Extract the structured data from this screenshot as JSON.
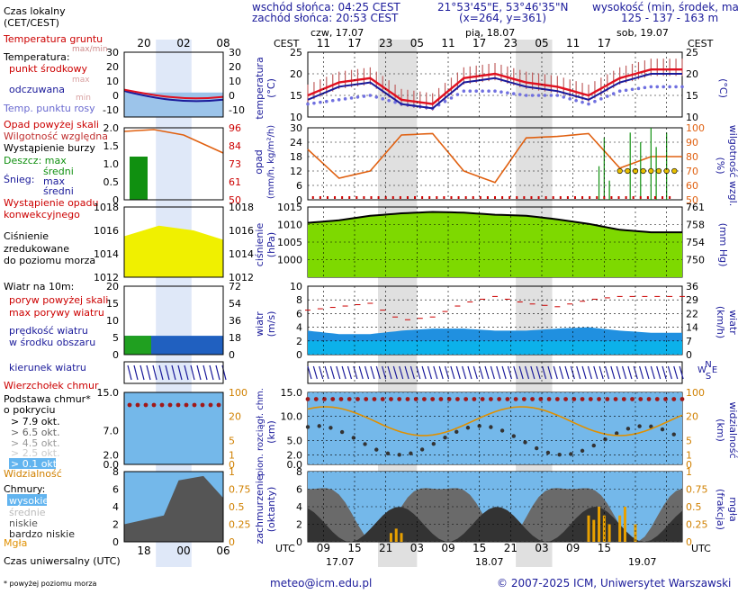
{
  "header": {
    "sunrise": "wschód słońca: 04:25 CEST",
    "sunset": "zachód słońca: 20:53 CEST",
    "coords": "21°53'45\"E, 53°46'35\"N",
    "grid": "(x=264, y=361)",
    "height_title": "wysokość (min, środek, max)",
    "height_values": "125 - 137 - 163 m"
  },
  "legend": {
    "local_time": "Czas lokalny",
    "local_time_sub": "(CET/CEST)",
    "soil_temp": "Temperatura gruntu",
    "soil_temp_sub": "max/min",
    "temperature": "Temperatura:",
    "temp_mid": "punkt środkowy",
    "temp_max": "max",
    "temp_felt": "odczuwana",
    "temp_min": "min",
    "dew_point": "Temp. punktu rosy",
    "precip_above": "Opad powyżej skali",
    "humidity": "Wilgotność względna",
    "storm": "Wystąpienie burzy",
    "rain": "Deszcz: max",
    "rain_mean": "średni",
    "snow": "Śnieg:",
    "snow_max": "max",
    "snow_mean": "średni",
    "convective": "Wystąpienie opadu",
    "convective2": "konwekcyjnego",
    "pressure1": "Ciśnienie",
    "pressure2": "zredukowane",
    "pressure3": "do poziomu morza",
    "wind": "Wiatr na 10m:",
    "gust_above": "poryw powyżej skali",
    "gust_max": "max porywy wiatru",
    "wind_mean1": "prędkość wiatru",
    "wind_mean2": "w środku obszaru",
    "wind_dir": "kierunek wiatru",
    "cloud_top": "Wierzchołek chmur",
    "cloud_base1": "Podstawa chmur*",
    "cloud_base2": "o pokryciu",
    "okt79": "> 7.9 okt.",
    "okt65": "> 6.5 okt.",
    "okt45": "> 4.5 okt.",
    "okt25": "> 2.5 okt.",
    "okt01": "> 0.1 okt.",
    "visibility": "Widzialność",
    "clouds": "Chmury:",
    "c_high": "wysokie",
    "c_mid": "średnie",
    "c_low": "niskie",
    "c_vlow": "bardzo niskie",
    "fog": "Mgła",
    "utc_time": "Czas uniwersalny (UTC)",
    "footnote": "* powyżej poziomu morza"
  },
  "axes": {
    "cest": "CEST",
    "utc": "UTC",
    "top_hours": [
      "11",
      "17",
      "23",
      "05",
      "11",
      "17",
      "23",
      "05",
      "11",
      "17"
    ],
    "bottom_hours": [
      "09",
      "15",
      "21",
      "03",
      "09",
      "15",
      "21",
      "03",
      "09",
      "15"
    ],
    "day_top": [
      "czw, 17.07",
      "pią, 18.07",
      "sob, 19.07"
    ],
    "day_bottom": [
      "17.07",
      "18.07",
      "19.07"
    ],
    "small_top": [
      "20",
      "02",
      "08"
    ],
    "small_bottom": [
      "18",
      "00",
      "06"
    ],
    "temp_label": "temperatura",
    "temp_unit": "(°C)",
    "temp_ticks": [
      "25",
      "20",
      "15",
      "10"
    ],
    "small_temp_ticks": [
      "30",
      "20",
      "10",
      "0",
      "-10"
    ],
    "precip_label": "opad",
    "precip_unit": "(mm/h, kg/m²/h)",
    "precip_ticks": [
      "30",
      "24",
      "18",
      "12",
      "6",
      "0"
    ],
    "hum_label": "wilgotność wzgl.",
    "hum_unit": "(%)",
    "hum_ticks": [
      "100",
      "90",
      "80",
      "70",
      "60",
      "50"
    ],
    "small_precip_ticks": [
      "2.0",
      "1.5",
      "1.0",
      "0.5",
      "0"
    ],
    "small_hum_ticks": [
      "96",
      "84",
      "73",
      "61",
      "50"
    ],
    "press_label": "ciśnienie",
    "press_unit": "(hPa)",
    "press_ticks": [
      "1015",
      "1010",
      "1005",
      "1000"
    ],
    "press_mmhg_label": "(mm Hg)",
    "press_mmhg_ticks": [
      "761",
      "758",
      "754",
      "750"
    ],
    "small_press_ticks": [
      "1018",
      "1016",
      "1014",
      "1012"
    ],
    "wind_label": "wiatr",
    "wind_unit": "(m/s)",
    "wind_ticks": [
      "10",
      "8",
      "6",
      "4",
      "2",
      "0"
    ],
    "wind_kmh_label": "wiatr",
    "wind_kmh_unit": "(km/h)",
    "wind_kmh_ticks": [
      "36",
      "29",
      "22",
      "14",
      "7",
      "0"
    ],
    "small_wind_ticks": [
      "20",
      "15",
      "10",
      "5",
      "0"
    ],
    "small_wind_kmh": [
      "72",
      "54",
      "36",
      "18",
      "0"
    ],
    "cloud_label1": "pion. rozciągł. chm.",
    "cloud_label2": "(km)",
    "cloud_ticks": [
      "15.0",
      "10.0",
      "5.0",
      "2.0",
      "0.0"
    ],
    "vis_label": "widzialność",
    "vis_unit": "(km)",
    "vis_ticks": [
      "100",
      "20",
      "5",
      "1",
      "0"
    ],
    "small_cloud_ticks": [
      "15.0",
      "7.0",
      "2.0",
      "0.0"
    ],
    "small_vis_ticks": [
      "100",
      "20",
      "5",
      "1",
      "0"
    ],
    "cover_label1": "zachmurzenie",
    "cover_label2": "(oktanty)",
    "cover_ticks": [
      "8",
      "6",
      "4",
      "2",
      "0"
    ],
    "fog_label": "mgła",
    "fog_unit": "(frakcja)",
    "fog_ticks": [
      "1",
      "0.75",
      "0.5",
      "0.25",
      "0"
    ],
    "dir_labels": [
      "N",
      "W",
      "E",
      "S"
    ]
  },
  "footer": {
    "email": "meteo@icm.edu.pl",
    "copyright": "© 2007-2025 ICM, Uniwersytet Warszawski"
  },
  "colors": {
    "temp": "#e01020",
    "felt": "#1a1a9a",
    "dew": "#7070e0",
    "humidity": "#e06010",
    "pressure_fill": "#7ed900",
    "wind_dark": "#0f3f9f",
    "wind_light": "#2090e0",
    "night": "#e0e0e0"
  },
  "chart_data": [
    {
      "type": "line",
      "title": "temperatura",
      "ylabel": "temperatura (°C)",
      "ylim": [
        10,
        25
      ],
      "x_hours_utc": [
        6,
        12,
        18,
        24,
        30,
        36,
        42,
        48,
        54,
        60,
        66,
        72
      ],
      "series": [
        {
          "name": "punkt środkowy",
          "values": [
            15,
            18,
            19,
            14,
            13,
            19,
            20,
            18,
            17,
            15,
            19,
            21
          ]
        },
        {
          "name": "odczuwana",
          "values": [
            14,
            17,
            18,
            13,
            12,
            18,
            19,
            17,
            16,
            14,
            18,
            20
          ]
        },
        {
          "name": "Temp. punktu rosy",
          "values": [
            13,
            14,
            15,
            13,
            12,
            16,
            16,
            15,
            15,
            13,
            16,
            17
          ]
        }
      ]
    },
    {
      "type": "line",
      "title": "wilgotność wzgl.",
      "ylabel": "wilgotność wzgl. (%)",
      "ylim": [
        50,
        100
      ],
      "x_hours_utc": [
        6,
        12,
        18,
        24,
        30,
        36,
        42,
        48,
        54,
        60,
        66,
        72
      ],
      "series": [
        {
          "name": "Wilgotność względna",
          "values": [
            85,
            65,
            70,
            95,
            96,
            70,
            62,
            93,
            94,
            96,
            72,
            80
          ]
        }
      ]
    },
    {
      "type": "area",
      "title": "ciśnienie",
      "ylabel": "ciśnienie (hPa)",
      "ylim": [
        995,
        1015
      ],
      "x_hours_utc": [
        6,
        12,
        18,
        24,
        30,
        36,
        42,
        48,
        54,
        60,
        66,
        72
      ],
      "series": [
        {
          "name": "Ciśnienie",
          "values": [
            1010.5,
            1011.2,
            1012.5,
            1013.2,
            1013.6,
            1013.4,
            1012.8,
            1012.5,
            1011.5,
            1010.2,
            1008.5,
            1007.8
          ]
        }
      ]
    },
    {
      "type": "line",
      "title": "wiatr",
      "ylabel": "wiatr (m/s)",
      "ylim": [
        0,
        10
      ],
      "x_hours_utc": [
        6,
        12,
        18,
        24,
        30,
        36,
        42,
        48,
        54,
        60,
        66,
        72
      ],
      "series": [
        {
          "name": "prędkość wiatru",
          "values": [
            3.5,
            3,
            3,
            3.5,
            3.8,
            3.8,
            3.5,
            3.5,
            3.8,
            4,
            3.5,
            3.2
          ]
        },
        {
          "name": "max porywy wiatru",
          "values": [
            6.5,
            7,
            7.5,
            5,
            5.5,
            7.5,
            8.5,
            7.5,
            7,
            8,
            8.5,
            8.5
          ]
        }
      ]
    }
  ]
}
